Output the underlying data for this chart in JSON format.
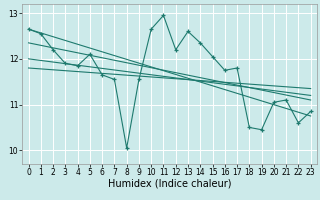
{
  "xlabel": "Humidex (Indice chaleur)",
  "bg_color": "#cceaea",
  "grid_color": "#ffffff",
  "line_color": "#1e7a6e",
  "xlim": [
    -0.5,
    23.5
  ],
  "ylim": [
    9.7,
    13.2
  ],
  "yticks": [
    10,
    11,
    12,
    13
  ],
  "xticks": [
    0,
    1,
    2,
    3,
    4,
    5,
    6,
    7,
    8,
    9,
    10,
    11,
    12,
    13,
    14,
    15,
    16,
    17,
    18,
    19,
    20,
    21,
    22,
    23
  ],
  "main_data_x": [
    0,
    1,
    2,
    3,
    4,
    5,
    6,
    7,
    8,
    9,
    10,
    11,
    12,
    13,
    14,
    15,
    16,
    17,
    18,
    19,
    20,
    21,
    22,
    23
  ],
  "main_data_y": [
    12.65,
    12.55,
    12.2,
    11.9,
    11.85,
    12.1,
    11.65,
    11.55,
    10.05,
    11.55,
    12.65,
    12.95,
    12.2,
    12.6,
    12.35,
    12.05,
    11.75,
    11.8,
    10.5,
    10.45,
    11.05,
    11.1,
    10.6,
    10.85
  ],
  "trend_lines": [
    [
      0,
      12.65,
      23,
      10.75
    ],
    [
      0,
      12.35,
      23,
      11.1
    ],
    [
      0,
      12.0,
      23,
      11.2
    ],
    [
      0,
      11.8,
      23,
      11.35
    ]
  ],
  "xlabel_fontsize": 7,
  "tick_fontsize": 5.5,
  "linewidth": 0.8,
  "marker_size": 3.0
}
